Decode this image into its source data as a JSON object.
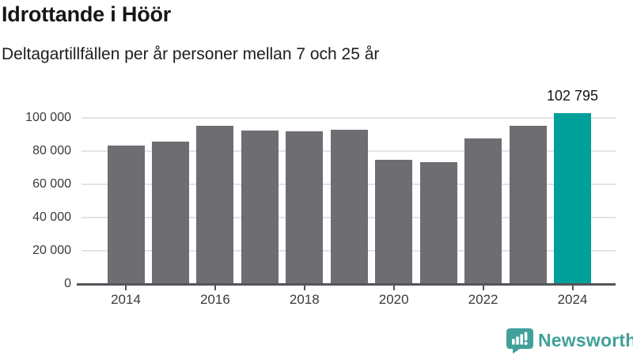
{
  "header": {
    "title": "Idrottande i Höör",
    "subtitle": "Deltagartillfällen per år personer mellan 7 och 25 år"
  },
  "chart_data": {
    "type": "bar",
    "title": "Idrottande i Höör",
    "subtitle": "Deltagartillfällen per år personer mellan 7 och 25 år",
    "categories": [
      "2014",
      "2015",
      "2016",
      "2017",
      "2018",
      "2019",
      "2020",
      "2021",
      "2022",
      "2023",
      "2024"
    ],
    "values": [
      83100,
      85700,
      95200,
      92400,
      91900,
      92900,
      74900,
      73300,
      87600,
      95200,
      102795
    ],
    "highlight": {
      "index": 10,
      "label": "102 795",
      "value": 102795
    },
    "xlabel": "",
    "ylabel": "",
    "ylim": [
      0,
      110000
    ],
    "y_ticks": [
      0,
      20000,
      40000,
      60000,
      80000,
      100000
    ],
    "y_tick_labels": [
      "0",
      "20 000",
      "40 000",
      "60 000",
      "80 000",
      "100 000"
    ],
    "x_tick_labels": [
      "2014",
      "2016",
      "2018",
      "2020",
      "2022",
      "2024"
    ],
    "grid": true,
    "legend": false,
    "colors": {
      "bar": "#6d6d72",
      "highlight": "#00a09a",
      "gridline": "#e3e3e5",
      "axis": "#54545a",
      "tick_label": "#3a3a3a"
    }
  },
  "footer": {
    "brand": "Newsworthy",
    "brand_color": "#41a09a",
    "logo_icon": "bar-chart-speech-bubble-icon"
  }
}
